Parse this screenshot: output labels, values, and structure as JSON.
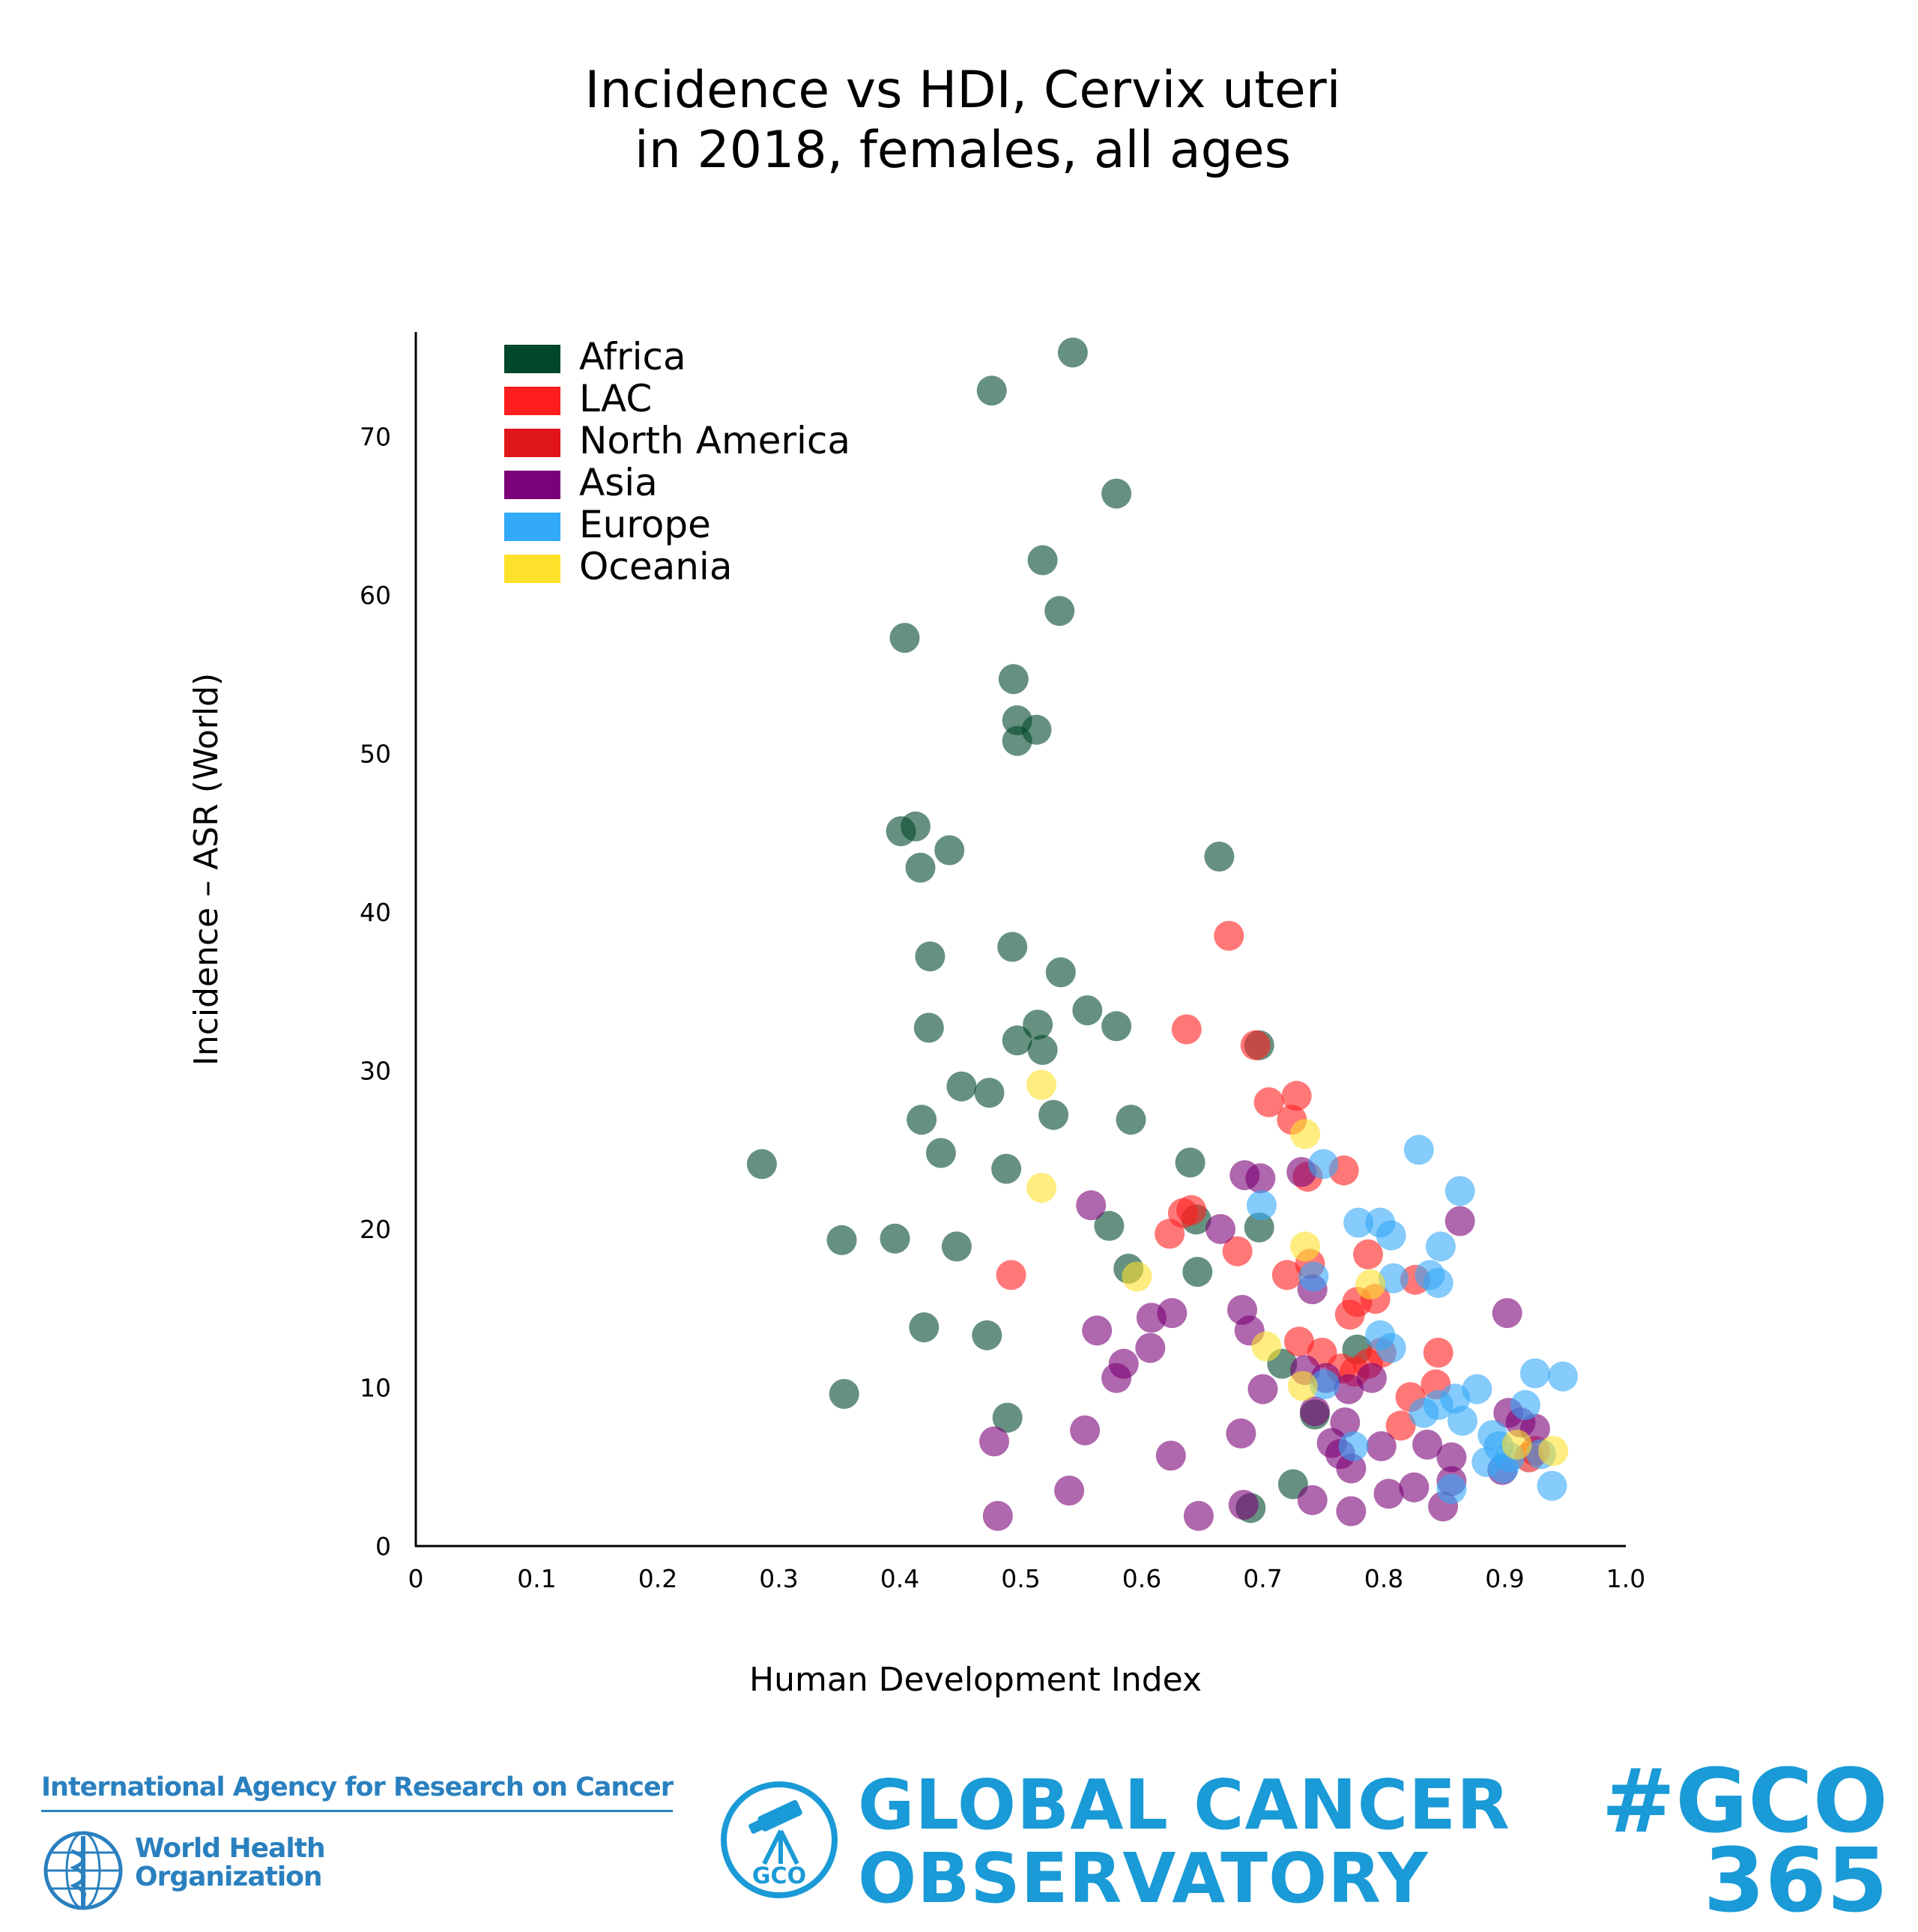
{
  "chart_data": {
    "type": "scatter",
    "title": [
      "Incidence vs HDI, Cervix uteri",
      "in 2018, females, all ages"
    ],
    "xlabel": "Human Development Index",
    "ylabel": "Incidence – ASR (World)",
    "xlim": [
      0,
      1.0
    ],
    "ylim": [
      0,
      76
    ],
    "xticks": [
      0,
      0.1,
      0.2,
      0.3,
      0.4,
      0.5,
      0.6,
      0.7,
      0.8,
      0.9,
      1.0
    ],
    "xtick_labels": [
      "0",
      "0.1",
      "0.2",
      "0.3",
      "0.4",
      "0.5",
      "0.6",
      "0.7",
      "0.8",
      "0.9",
      "1.0"
    ],
    "yticks": [
      0,
      10,
      20,
      30,
      40,
      50,
      60,
      70
    ],
    "ytick_labels": [
      "0",
      "10",
      "20",
      "30",
      "40",
      "50",
      "60",
      "70"
    ],
    "grid": false,
    "legend_position": "top-left",
    "series": [
      {
        "name": "Africa",
        "color": "#00472b",
        "points": [
          [
            0.543,
            75.3
          ],
          [
            0.476,
            72.9
          ],
          [
            0.579,
            66.4
          ],
          [
            0.518,
            62.2
          ],
          [
            0.532,
            59.0
          ],
          [
            0.404,
            57.3
          ],
          [
            0.494,
            54.7
          ],
          [
            0.497,
            52.1
          ],
          [
            0.513,
            51.5
          ],
          [
            0.497,
            50.8
          ],
          [
            0.413,
            45.4
          ],
          [
            0.401,
            45.1
          ],
          [
            0.441,
            43.9
          ],
          [
            0.417,
            42.8
          ],
          [
            0.664,
            43.5
          ],
          [
            0.425,
            37.2
          ],
          [
            0.493,
            37.8
          ],
          [
            0.533,
            36.2
          ],
          [
            0.555,
            33.8
          ],
          [
            0.579,
            32.8
          ],
          [
            0.424,
            32.7
          ],
          [
            0.514,
            32.9
          ],
          [
            0.497,
            31.9
          ],
          [
            0.518,
            31.3
          ],
          [
            0.697,
            31.6
          ],
          [
            0.451,
            29.0
          ],
          [
            0.474,
            28.6
          ],
          [
            0.418,
            26.9
          ],
          [
            0.527,
            27.2
          ],
          [
            0.591,
            26.9
          ],
          [
            0.434,
            24.8
          ],
          [
            0.286,
            24.1
          ],
          [
            0.488,
            23.8
          ],
          [
            0.64,
            24.2
          ],
          [
            0.573,
            20.2
          ],
          [
            0.645,
            20.6
          ],
          [
            0.697,
            20.1
          ],
          [
            0.352,
            19.3
          ],
          [
            0.396,
            19.4
          ],
          [
            0.447,
            18.9
          ],
          [
            0.589,
            17.5
          ],
          [
            0.646,
            17.3
          ],
          [
            0.42,
            13.8
          ],
          [
            0.472,
            13.3
          ],
          [
            0.354,
            9.6
          ],
          [
            0.489,
            8.1
          ],
          [
            0.716,
            11.5
          ],
          [
            0.743,
            8.3
          ],
          [
            0.778,
            12.4
          ],
          [
            0.725,
            3.9
          ],
          [
            0.69,
            2.4
          ]
        ]
      },
      {
        "name": "LAC",
        "color": "#ff1e1e",
        "points": [
          [
            0.672,
            38.5
          ],
          [
            0.637,
            32.6
          ],
          [
            0.694,
            31.6
          ],
          [
            0.705,
            28.0
          ],
          [
            0.728,
            28.4
          ],
          [
            0.724,
            26.9
          ],
          [
            0.767,
            23.7
          ],
          [
            0.737,
            23.3
          ],
          [
            0.634,
            21.0
          ],
          [
            0.641,
            21.2
          ],
          [
            0.623,
            19.7
          ],
          [
            0.679,
            18.6
          ],
          [
            0.72,
            17.1
          ],
          [
            0.739,
            17.8
          ],
          [
            0.787,
            18.4
          ],
          [
            0.826,
            16.8
          ],
          [
            0.492,
            17.1
          ],
          [
            0.778,
            15.4
          ],
          [
            0.793,
            15.6
          ],
          [
            0.772,
            14.6
          ],
          [
            0.73,
            12.9
          ],
          [
            0.749,
            12.2
          ],
          [
            0.776,
            11.0
          ],
          [
            0.765,
            11.2
          ],
          [
            0.787,
            11.5
          ],
          [
            0.798,
            12.2
          ],
          [
            0.845,
            12.2
          ],
          [
            0.843,
            10.2
          ],
          [
            0.822,
            9.4
          ],
          [
            0.814,
            7.6
          ],
          [
            0.925,
            6.0
          ]
        ]
      },
      {
        "name": "North America",
        "color": "#e0161a",
        "points": [
          [
            0.92,
            5.6
          ]
        ]
      },
      {
        "name": "Asia",
        "color": "#7a0177",
        "points": [
          [
            0.558,
            21.5
          ],
          [
            0.685,
            23.4
          ],
          [
            0.698,
            23.2
          ],
          [
            0.732,
            23.6
          ],
          [
            0.665,
            20.0
          ],
          [
            0.863,
            20.5
          ],
          [
            0.741,
            16.2
          ],
          [
            0.902,
            14.7
          ],
          [
            0.625,
            14.7
          ],
          [
            0.608,
            14.4
          ],
          [
            0.563,
            13.6
          ],
          [
            0.683,
            14.9
          ],
          [
            0.689,
            13.6
          ],
          [
            0.607,
            12.5
          ],
          [
            0.585,
            11.5
          ],
          [
            0.579,
            10.6
          ],
          [
            0.7,
            9.9
          ],
          [
            0.735,
            11.1
          ],
          [
            0.752,
            10.6
          ],
          [
            0.79,
            10.6
          ],
          [
            0.771,
            9.9
          ],
          [
            0.743,
            8.5
          ],
          [
            0.768,
            7.8
          ],
          [
            0.757,
            6.5
          ],
          [
            0.764,
            5.8
          ],
          [
            0.773,
            4.9
          ],
          [
            0.798,
            6.3
          ],
          [
            0.836,
            6.4
          ],
          [
            0.856,
            5.6
          ],
          [
            0.553,
            7.3
          ],
          [
            0.478,
            6.6
          ],
          [
            0.624,
            5.7
          ],
          [
            0.682,
            7.1
          ],
          [
            0.54,
            3.5
          ],
          [
            0.481,
            1.9
          ],
          [
            0.647,
            1.9
          ],
          [
            0.741,
            2.9
          ],
          [
            0.773,
            2.2
          ],
          [
            0.804,
            3.3
          ],
          [
            0.825,
            3.7
          ],
          [
            0.849,
            2.5
          ],
          [
            0.856,
            4.1
          ],
          [
            0.913,
            7.8
          ],
          [
            0.925,
            7.4
          ],
          [
            0.903,
            8.4
          ],
          [
            0.898,
            4.8
          ],
          [
            0.684,
            2.6
          ]
        ]
      },
      {
        "name": "Europe",
        "color": "#33a9f9",
        "points": [
          [
            0.829,
            25.0
          ],
          [
            0.75,
            24.1
          ],
          [
            0.699,
            21.5
          ],
          [
            0.863,
            22.4
          ],
          [
            0.779,
            20.4
          ],
          [
            0.797,
            20.4
          ],
          [
            0.806,
            19.6
          ],
          [
            0.847,
            18.9
          ],
          [
            0.838,
            17.1
          ],
          [
            0.845,
            16.6
          ],
          [
            0.808,
            16.9
          ],
          [
            0.742,
            17.0
          ],
          [
            0.797,
            13.3
          ],
          [
            0.806,
            12.5
          ],
          [
            0.925,
            10.9
          ],
          [
            0.948,
            10.7
          ],
          [
            0.917,
            8.9
          ],
          [
            0.877,
            9.9
          ],
          [
            0.859,
            9.3
          ],
          [
            0.833,
            8.4
          ],
          [
            0.845,
            8.9
          ],
          [
            0.865,
            7.9
          ],
          [
            0.89,
            7.0
          ],
          [
            0.895,
            6.3
          ],
          [
            0.904,
            5.6
          ],
          [
            0.885,
            5.3
          ],
          [
            0.899,
            4.9
          ],
          [
            0.939,
            3.8
          ],
          [
            0.856,
            3.6
          ],
          [
            0.751,
            10.2
          ],
          [
            0.775,
            6.3
          ],
          [
            0.93,
            5.8
          ]
        ]
      },
      {
        "name": "Oceania",
        "color": "#fee12b",
        "points": [
          [
            0.517,
            29.1
          ],
          [
            0.517,
            22.6
          ],
          [
            0.596,
            17.0
          ],
          [
            0.735,
            26.0
          ],
          [
            0.735,
            18.9
          ],
          [
            0.789,
            16.5
          ],
          [
            0.703,
            12.6
          ],
          [
            0.733,
            10.1
          ],
          [
            0.94,
            6.0
          ],
          [
            0.91,
            6.4
          ]
        ]
      }
    ]
  },
  "footer": {
    "iarc_name": "International Agency for Research on Cancer",
    "who_line1": "World Health",
    "who_line2": "Organization",
    "gco_logo_text": "GCO",
    "gco_line1": "GLOBAL CANCER",
    "gco_line2": "OBSERVATORY",
    "hashtag_line1": "#GCO",
    "hashtag_line2": "365"
  }
}
